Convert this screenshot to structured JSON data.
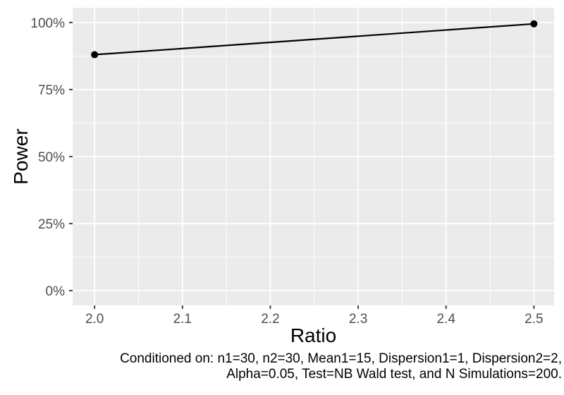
{
  "chart_data": {
    "type": "line",
    "title": "",
    "x": [
      2.0,
      2.5
    ],
    "series": [
      {
        "name": "Power",
        "values": [
          88,
          99.5
        ]
      }
    ],
    "xlabel": "Ratio",
    "ylabel": "Power",
    "xlim": [
      1.975,
      2.523
    ],
    "ylim": [
      -5.5,
      105.5
    ],
    "x_ticks": [
      2.0,
      2.1,
      2.2,
      2.3,
      2.4,
      2.5
    ],
    "x_tick_labels": [
      "2.0",
      "2.1",
      "2.2",
      "2.3",
      "2.4",
      "2.5"
    ],
    "y_ticks": [
      0,
      25,
      50,
      75,
      100
    ],
    "y_tick_labels": [
      "0%",
      "25%",
      "50%",
      "75%",
      "100%"
    ],
    "x_minor_ticks": [
      2.05,
      2.15,
      2.25,
      2.35,
      2.45
    ],
    "y_minor_ticks": [
      12.5,
      37.5,
      62.5,
      87.5
    ],
    "grid": "major and minor, white lines on gray panel",
    "legend": "none",
    "caption_lines": [
      "Conditioned on: n1=30, n2=30, Mean1=15, Dispersion1=1, Dispersion2=2,",
      "Alpha=0.05, Test=NB Wald test, and N Simulations=200."
    ],
    "colors": {
      "panel_bg": "#EBEBEB",
      "grid": "#FFFFFF",
      "line": "#000000",
      "point": "#000000",
      "axis_text": "#4D4D4D",
      "tick_mark": "#333333",
      "title_text": "#000000",
      "background": "#FFFFFF"
    }
  }
}
